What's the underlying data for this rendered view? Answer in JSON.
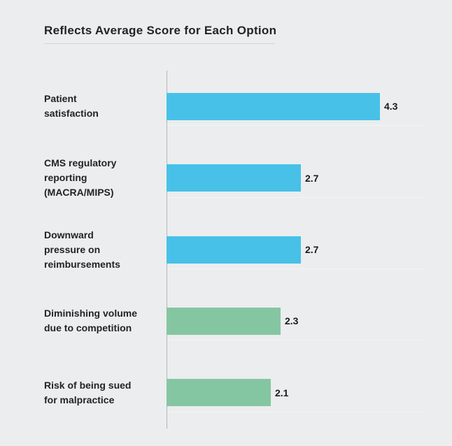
{
  "page": {
    "background_color": "#ebedee",
    "title": "Reflects Average Score for Each Option"
  },
  "chart_data": {
    "type": "bar",
    "orientation": "horizontal",
    "title": "Reflects Average Score for Each Option",
    "categories": [
      "Patient satisfaction",
      "CMS regulatory reporting (MACRA/MIPS)",
      "Downward pressure on reimbursements",
      "Diminishing volume due to competition",
      "Risk of being sued for malpractice"
    ],
    "values": [
      4.3,
      2.7,
      2.7,
      2.3,
      2.1
    ],
    "xlim": [
      0,
      4.5
    ],
    "grid": false,
    "legend": false,
    "axis_color": "#b4b6b8",
    "colors": {
      "blue": "#47c1e8",
      "green": "#85c6a2"
    },
    "rows": [
      {
        "category": "Patient satisfaction",
        "label_lines": [
          "Patient",
          "satisfaction"
        ],
        "value": 4.3,
        "display_value": "4.3",
        "color": "#47c1e8"
      },
      {
        "category": "CMS regulatory reporting (MACRA/MIPS)",
        "label_lines": [
          "CMS regulatory",
          "reporting",
          "(MACRA/MIPS)"
        ],
        "value": 2.7,
        "display_value": "2.7",
        "color": "#47c1e8"
      },
      {
        "category": "Downward pressure on reimbursements",
        "label_lines": [
          "Downward",
          "pressure on",
          "reimbursements"
        ],
        "value": 2.7,
        "display_value": "2.7",
        "color": "#47c1e8"
      },
      {
        "category": "Diminishing volume due to competition",
        "label_lines": [
          "Diminishing volume",
          "due to competition"
        ],
        "value": 2.3,
        "display_value": "2.3",
        "color": "#85c6a2"
      },
      {
        "category": "Risk of being sued for malpractice",
        "label_lines": [
          "Risk of being sued",
          "for malpractice"
        ],
        "value": 2.1,
        "display_value": "2.1",
        "color": "#85c6a2"
      }
    ]
  }
}
